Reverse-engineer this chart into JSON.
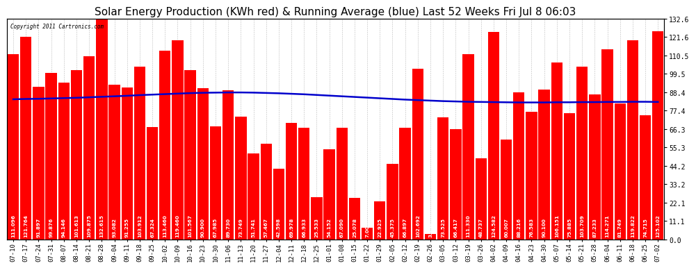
{
  "title": "Solar Energy Production (KWh red) & Running Average (blue) Last 52 Weeks Fri Jul 8 06:03",
  "copyright": "Copyright 2011 Cartronics.com",
  "bar_color": "#FF0000",
  "avg_line_color": "#0000CC",
  "plot_bg_color": "#FFFFFF",
  "grid_color": "#BBBBBB",
  "ylabel_right_values": [
    0.0,
    11.1,
    22.1,
    33.2,
    44.2,
    55.3,
    66.3,
    77.4,
    88.4,
    99.5,
    110.5,
    121.6,
    132.6
  ],
  "categories": [
    "07-10",
    "07-17",
    "07-24",
    "07-31",
    "08-07",
    "08-14",
    "08-21",
    "08-28",
    "09-04",
    "09-11",
    "09-18",
    "09-25",
    "10-02",
    "10-09",
    "10-16",
    "10-23",
    "10-30",
    "11-06",
    "11-13",
    "11-20",
    "11-27",
    "12-04",
    "12-11",
    "12-18",
    "12-25",
    "01-01",
    "01-08",
    "01-15",
    "01-22",
    "01-29",
    "02-05",
    "02-12",
    "02-19",
    "02-26",
    "03-05",
    "03-12",
    "03-19",
    "03-26",
    "04-02",
    "04-09",
    "04-16",
    "04-23",
    "04-30",
    "05-07",
    "05-14",
    "05-21",
    "05-28",
    "06-04",
    "06-11",
    "06-18",
    "06-25",
    "07-02"
  ],
  "values": [
    111.096,
    121.764,
    91.897,
    99.876,
    94.146,
    101.613,
    109.875,
    132.615,
    93.082,
    91.255,
    103.912,
    67.324,
    113.46,
    119.46,
    101.567,
    90.9,
    67.985,
    89.73,
    73.749,
    51.741,
    57.467,
    42.598,
    69.978,
    66.933,
    25.533,
    54.152,
    67.09,
    25.078,
    7.009,
    22.925,
    45.375,
    66.897,
    102.692,
    3.152,
    73.525,
    66.417,
    111.33,
    48.737,
    124.582,
    60.007,
    88.216,
    76.583,
    90.1,
    106.151,
    75.885,
    103.709,
    87.233,
    114.271,
    81.749,
    119.822,
    74.715,
    125.102
  ],
  "running_avg": [
    84.2,
    84.4,
    84.5,
    84.7,
    84.9,
    85.1,
    85.4,
    85.7,
    86.0,
    86.3,
    86.7,
    87.0,
    87.3,
    87.6,
    87.9,
    88.1,
    88.2,
    88.3,
    88.3,
    88.2,
    88.0,
    87.8,
    87.5,
    87.2,
    86.8,
    86.4,
    86.0,
    85.6,
    85.2,
    84.8,
    84.4,
    84.0,
    83.7,
    83.4,
    83.1,
    82.9,
    82.7,
    82.6,
    82.5,
    82.4,
    82.3,
    82.3,
    82.3,
    82.4,
    82.4,
    82.5,
    82.5,
    82.6,
    82.6,
    82.7,
    82.7,
    82.6
  ],
  "ylim": [
    0.0,
    132.6
  ],
  "title_fontsize": 11,
  "tick_fontsize": 6.5,
  "bar_value_fontsize": 5.2,
  "figsize": [
    9.9,
    3.75
  ],
  "dpi": 100
}
